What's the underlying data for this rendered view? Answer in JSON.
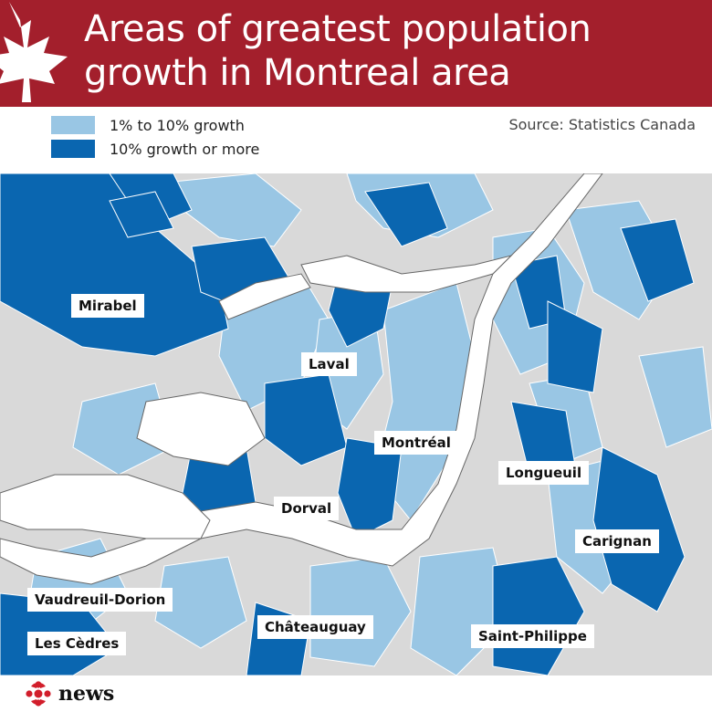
{
  "header": {
    "title_line1": "Areas of greatest population",
    "title_line2": "growth in Montreal area",
    "background": "#a31f2c",
    "icon": "maple-leaf-icon"
  },
  "legend": {
    "items": [
      {
        "label": "1% to 10% growth",
        "color": "#99c6e4"
      },
      {
        "label": "10% growth or more",
        "color": "#0a66b0"
      }
    ]
  },
  "source": "Source: Statistics Canada",
  "map": {
    "colors": {
      "no_growth": "#d9d9d9",
      "water": "#ffffff",
      "light": "#99c6e4",
      "dark": "#0a66b0"
    },
    "labels": [
      {
        "id": "mirabel",
        "text": "Mirabel"
      },
      {
        "id": "laval",
        "text": "Laval"
      },
      {
        "id": "montreal",
        "text": "Montréal"
      },
      {
        "id": "longueuil",
        "text": "Longueuil"
      },
      {
        "id": "dorval",
        "text": "Dorval"
      },
      {
        "id": "carignan",
        "text": "Carignan"
      },
      {
        "id": "vaudreuil-dorion",
        "text": "Vaudreuil-Dorion"
      },
      {
        "id": "chateauguay",
        "text": "Châteauguay"
      },
      {
        "id": "les-cedres",
        "text": "Les Cèdres"
      },
      {
        "id": "saint-philippe",
        "text": "Saint-Philippe"
      }
    ]
  },
  "footer": {
    "logo_text": "news",
    "icon": "cbc-gem-icon"
  }
}
